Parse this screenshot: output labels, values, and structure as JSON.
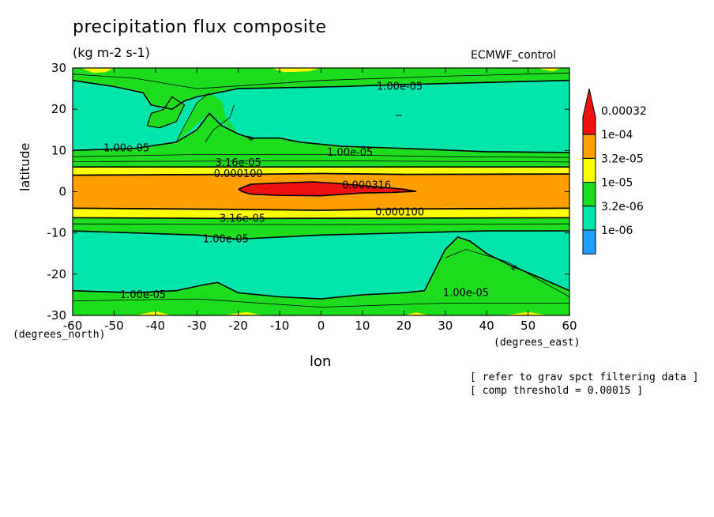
{
  "chart_data": {
    "type": "heatmap",
    "subtype": "filled-contour",
    "title": "precipitation flux composite",
    "units": "(kg m-2 s-1)",
    "run_label": "ECMWF_control",
    "xlabel": "lon",
    "ylabel": "latitude",
    "x_units": "(degrees_east)",
    "y_units": "(degrees_north)",
    "xlim": [
      -60,
      60
    ],
    "ylim": [
      -30,
      30
    ],
    "xticks": [
      -60,
      -50,
      -40,
      -30,
      -20,
      -10,
      0,
      10,
      20,
      30,
      40,
      50,
      60
    ],
    "yticks": [
      -30,
      -20,
      -10,
      0,
      10,
      20,
      30
    ],
    "legend": {
      "position": "right",
      "levels": [
        "1e-06",
        "3.2e-06",
        "1e-05",
        "3.2e-05",
        "1e-04",
        "0.00032"
      ],
      "colors": [
        "#1fa0ff",
        "#00e6aa",
        "#1edc1e",
        "#ffff00",
        "#ffa000",
        "#ee1111"
      ]
    },
    "contour_labels": [
      {
        "text": "1.00e-05",
        "lon": 19,
        "lat": 25.5
      },
      {
        "text": "1.00e-05",
        "lon": -47,
        "lat": 10.5
      },
      {
        "text": "1.00e-05",
        "lon": 7,
        "lat": 9.5
      },
      {
        "text": "3.16e-05",
        "lon": -20,
        "lat": 7
      },
      {
        "text": "0.000100",
        "lon": -20,
        "lat": 4.3
      },
      {
        "text": "0.000316",
        "lon": 11,
        "lat": 1.5
      },
      {
        "text": "0.000100",
        "lon": 19,
        "lat": -5
      },
      {
        "text": "3.16e-05",
        "lon": -19,
        "lat": -6.5
      },
      {
        "text": "1.00e-05",
        "lon": -23,
        "lat": -11.5
      },
      {
        "text": "1.00e-05",
        "lon": -43,
        "lat": -25
      },
      {
        "text": "1.00e-05",
        "lon": 35,
        "lat": -24.5
      }
    ],
    "grid": false
  },
  "notes": {
    "line1": "[ refer to grav spct filtering data ]",
    "line2": "[ comp threshold = 0.00015 ]"
  }
}
